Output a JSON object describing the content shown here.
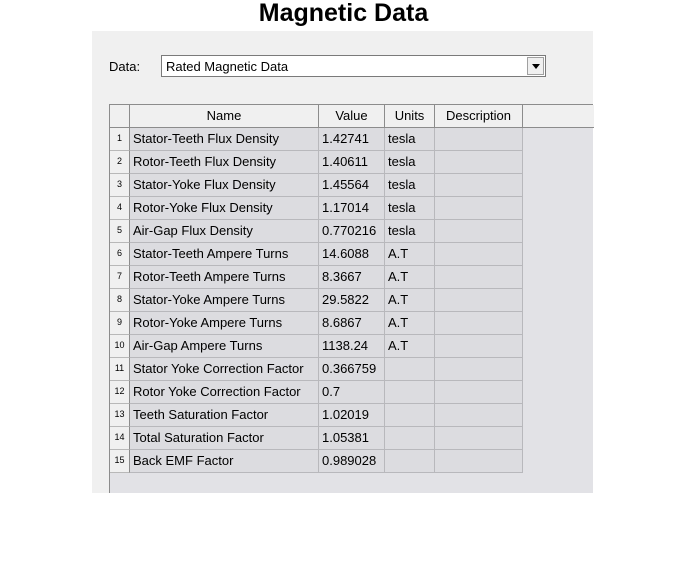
{
  "title": "Magnetic Data",
  "selector": {
    "label": "Data:",
    "value": "Rated Magnetic Data"
  },
  "table": {
    "columns": [
      "Name",
      "Value",
      "Units",
      "Description"
    ],
    "rows": [
      {
        "num": "1",
        "name": "Stator-Teeth Flux Density",
        "value": "1.42741",
        "units": "tesla",
        "description": ""
      },
      {
        "num": "2",
        "name": "Rotor-Teeth Flux Density",
        "value": "1.40611",
        "units": "tesla",
        "description": ""
      },
      {
        "num": "3",
        "name": "Stator-Yoke Flux Density",
        "value": "1.45564",
        "units": "tesla",
        "description": ""
      },
      {
        "num": "4",
        "name": "Rotor-Yoke Flux Density",
        "value": "1.17014",
        "units": "tesla",
        "description": ""
      },
      {
        "num": "5",
        "name": "Air-Gap Flux Density",
        "value": "0.770216",
        "units": "tesla",
        "description": ""
      },
      {
        "num": "6",
        "name": "Stator-Teeth Ampere Turns",
        "value": "14.6088",
        "units": "A.T",
        "description": ""
      },
      {
        "num": "7",
        "name": "Rotor-Teeth Ampere Turns",
        "value": "8.3667",
        "units": "A.T",
        "description": ""
      },
      {
        "num": "8",
        "name": "Stator-Yoke Ampere Turns",
        "value": "29.5822",
        "units": "A.T",
        "description": ""
      },
      {
        "num": "9",
        "name": "Rotor-Yoke Ampere Turns",
        "value": "8.6867",
        "units": "A.T",
        "description": ""
      },
      {
        "num": "10",
        "name": "Air-Gap Ampere Turns",
        "value": "1138.24",
        "units": "A.T",
        "description": ""
      },
      {
        "num": "11",
        "name": "Stator Yoke Correction Factor",
        "value": "0.366759",
        "units": "",
        "description": ""
      },
      {
        "num": "12",
        "name": "Rotor Yoke Correction Factor",
        "value": "0.7",
        "units": "",
        "description": ""
      },
      {
        "num": "13",
        "name": "Teeth Saturation Factor",
        "value": "1.02019",
        "units": "",
        "description": ""
      },
      {
        "num": "14",
        "name": "Total Saturation Factor",
        "value": "1.05381",
        "units": "",
        "description": ""
      },
      {
        "num": "15",
        "name": "Back EMF Factor",
        "value": "0.989028",
        "units": "",
        "description": ""
      }
    ]
  }
}
